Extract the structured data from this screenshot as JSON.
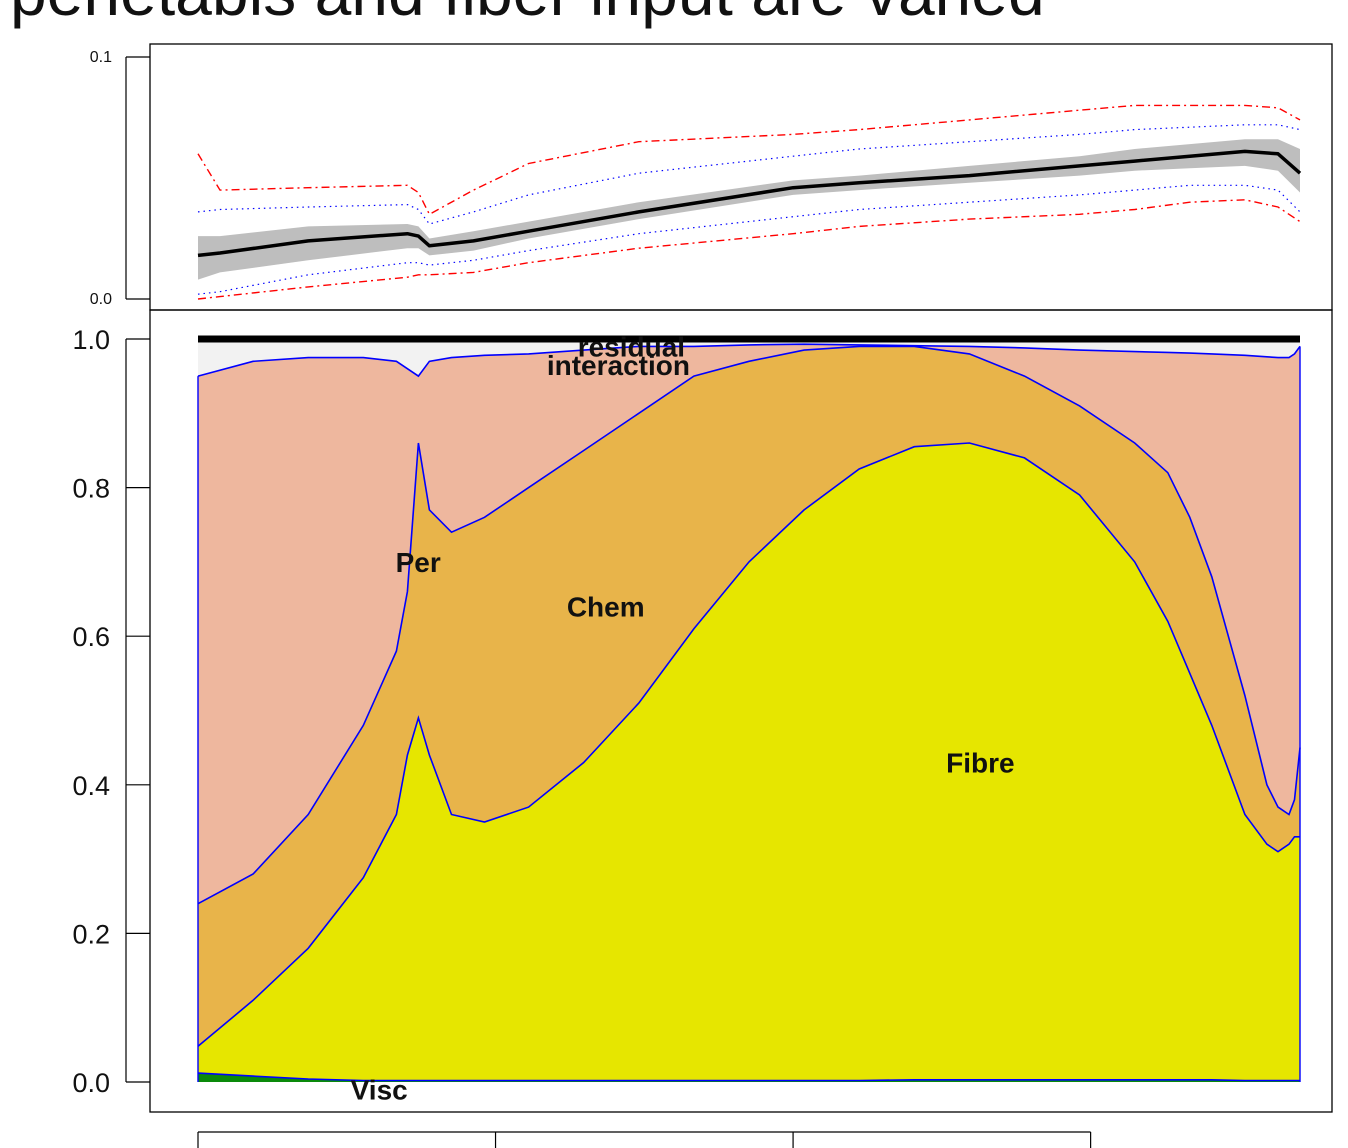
{
  "title": "penetabis and fiber input are varied",
  "chart_data": [
    {
      "type": "line",
      "ylim": [
        0.0,
        0.1
      ],
      "yticks": [
        0.0,
        0.1
      ],
      "ytick_labels": [
        "0.0",
        "0.1"
      ],
      "xlim": [
        0,
        1
      ],
      "grid": false,
      "x": [
        0.0,
        0.02,
        0.1,
        0.19,
        0.2,
        0.21,
        0.25,
        0.3,
        0.4,
        0.54,
        0.6,
        0.7,
        0.8,
        0.85,
        0.9,
        0.95,
        0.98,
        1.0
      ],
      "mean": [
        0.018,
        0.019,
        0.024,
        0.027,
        0.026,
        0.022,
        0.024,
        0.028,
        0.036,
        0.046,
        0.048,
        0.051,
        0.055,
        0.057,
        0.059,
        0.061,
        0.06,
        0.052
      ],
      "band": {
        "lower": [
          0.008,
          0.011,
          0.016,
          0.021,
          0.021,
          0.018,
          0.02,
          0.025,
          0.033,
          0.043,
          0.045,
          0.048,
          0.051,
          0.053,
          0.054,
          0.055,
          0.053,
          0.044
        ],
        "upper": [
          0.026,
          0.026,
          0.03,
          0.031,
          0.03,
          0.025,
          0.028,
          0.032,
          0.04,
          0.049,
          0.051,
          0.055,
          0.059,
          0.062,
          0.064,
          0.066,
          0.066,
          0.062
        ],
        "color": "#bebebe"
      },
      "inner_bounds": {
        "lower": [
          0.002,
          0.003,
          0.01,
          0.015,
          0.015,
          0.014,
          0.016,
          0.02,
          0.027,
          0.034,
          0.037,
          0.04,
          0.043,
          0.045,
          0.047,
          0.047,
          0.045,
          0.036
        ],
        "upper": [
          0.036,
          0.037,
          0.038,
          0.039,
          0.037,
          0.031,
          0.036,
          0.043,
          0.052,
          0.059,
          0.062,
          0.065,
          0.068,
          0.07,
          0.071,
          0.072,
          0.072,
          0.07
        ],
        "color": "#0000ff"
      },
      "outer_bounds": {
        "lower": [
          0.0,
          0.001,
          0.005,
          0.009,
          0.01,
          0.01,
          0.011,
          0.015,
          0.021,
          0.027,
          0.03,
          0.033,
          0.035,
          0.037,
          0.04,
          0.041,
          0.038,
          0.032
        ],
        "upper": [
          0.06,
          0.045,
          0.046,
          0.047,
          0.044,
          0.035,
          0.045,
          0.056,
          0.065,
          0.068,
          0.07,
          0.074,
          0.078,
          0.08,
          0.08,
          0.08,
          0.079,
          0.074
        ],
        "color": "#ff0000"
      },
      "line_color": "#000000"
    },
    {
      "type": "area",
      "ylim": [
        0.0,
        1.0
      ],
      "yticks": [
        0.0,
        0.2,
        0.4,
        0.6,
        0.8,
        1.0
      ],
      "ytick_labels": [
        "0.0",
        "0.2",
        "0.4",
        "0.6",
        "0.8",
        "1.0"
      ],
      "xlim": [
        0,
        1
      ],
      "xticks": [
        0.0,
        0.27,
        0.54,
        0.81
      ],
      "xtick_labels": [
        "",
        "",
        "",
        ""
      ],
      "grid": false,
      "stacked": true,
      "x": [
        0.0,
        0.05,
        0.1,
        0.15,
        0.18,
        0.19,
        0.2,
        0.21,
        0.23,
        0.26,
        0.3,
        0.35,
        0.4,
        0.45,
        0.5,
        0.55,
        0.6,
        0.65,
        0.7,
        0.75,
        0.8,
        0.85,
        0.88,
        0.9,
        0.92,
        0.95,
        0.97,
        0.98,
        0.99,
        0.995,
        1.0
      ],
      "series": [
        {
          "name": "Visc",
          "color": "#0a8a0a",
          "values": [
            0.012,
            0.008,
            0.004,
            0.002,
            0.002,
            0.002,
            0.002,
            0.002,
            0.002,
            0.002,
            0.002,
            0.002,
            0.002,
            0.002,
            0.002,
            0.002,
            0.002,
            0.003,
            0.003,
            0.003,
            0.003,
            0.003,
            0.003,
            0.003,
            0.003,
            0.002,
            0.002,
            0.002,
            0.002,
            0.002,
            0.002
          ]
        },
        {
          "name": "Fibre",
          "color": "#e6e600",
          "values": [
            0.048,
            0.11,
            0.18,
            0.275,
            0.36,
            0.44,
            0.49,
            0.44,
            0.36,
            0.35,
            0.37,
            0.43,
            0.51,
            0.61,
            0.7,
            0.77,
            0.825,
            0.855,
            0.86,
            0.84,
            0.79,
            0.7,
            0.62,
            0.55,
            0.48,
            0.36,
            0.32,
            0.31,
            0.32,
            0.33,
            0.33
          ]
        },
        {
          "name": "Chem",
          "color": "#e8b44a",
          "values": [
            0.24,
            0.28,
            0.36,
            0.48,
            0.58,
            0.66,
            0.86,
            0.77,
            0.74,
            0.76,
            0.8,
            0.85,
            0.9,
            0.95,
            0.97,
            0.985,
            0.99,
            0.99,
            0.98,
            0.95,
            0.91,
            0.86,
            0.82,
            0.76,
            0.68,
            0.52,
            0.4,
            0.37,
            0.36,
            0.38,
            0.45
          ]
        },
        {
          "name": "Per",
          "color": "#eeb79e",
          "values": [
            0.95,
            0.97,
            0.975,
            0.975,
            0.97,
            0.96,
            0.95,
            0.97,
            0.975,
            0.978,
            0.98,
            0.985,
            0.99,
            0.99,
            0.992,
            0.993,
            0.992,
            0.991,
            0.99,
            0.988,
            0.985,
            0.983,
            0.982,
            0.981,
            0.98,
            0.978,
            0.976,
            0.975,
            0.975,
            0.98,
            0.99
          ]
        },
        {
          "name": "interaction",
          "color": "#f2f2f2",
          "values": [
            0.995,
            0.996,
            0.996,
            0.996,
            0.996,
            0.996,
            0.996,
            0.996,
            0.996,
            0.996,
            0.996,
            0.996,
            0.996,
            0.996,
            0.996,
            0.996,
            0.996,
            0.996,
            0.996,
            0.996,
            0.996,
            0.996,
            0.996,
            0.996,
            0.996,
            0.996,
            0.996,
            0.996,
            0.996,
            0.996,
            0.996
          ]
        },
        {
          "name": "residual",
          "color": "#000000",
          "values": [
            1.0,
            1.0,
            1.0,
            1.0,
            1.0,
            1.0,
            1.0,
            1.0,
            1.0,
            1.0,
            1.0,
            1.0,
            1.0,
            1.0,
            1.0,
            1.0,
            1.0,
            1.0,
            1.0,
            1.0,
            1.0,
            1.0,
            1.0,
            1.0,
            1.0,
            1.0,
            1.0,
            1.0,
            1.0,
            1.0,
            1.0
          ]
        }
      ],
      "labels": [
        {
          "text": "residual",
          "x": 0.2,
          "y": 0.99
        },
        {
          "text": "interaction",
          "x": 0.2,
          "y": 0.965
        },
        {
          "text": "Per",
          "x": 0.1,
          "y": 0.7
        },
        {
          "text": "Chem",
          "x": 0.37,
          "y": 0.64
        },
        {
          "text": "Fibre",
          "x": 0.71,
          "y": 0.43
        },
        {
          "text": "Visc",
          "x": 0.1,
          "y": -0.01
        }
      ],
      "boundary_color": "#0000ff"
    }
  ]
}
